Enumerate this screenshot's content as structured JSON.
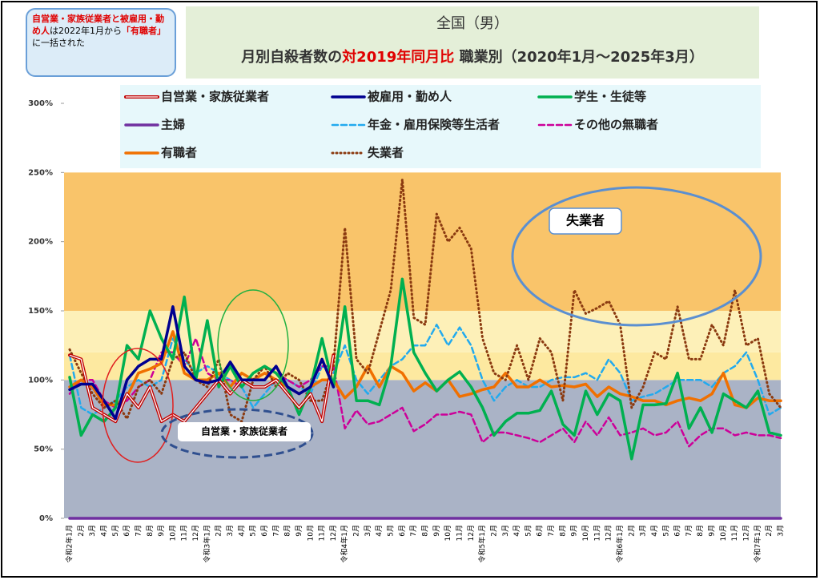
{
  "chart_data": {
    "type": "line",
    "title": "全国（男）",
    "subtitle": [
      {
        "text": "月別自殺者数の"
      },
      {
        "text": "対2019年同月比",
        "color": "#e00000"
      },
      {
        "text": " 職業別（2020年1月～2025年3月）"
      }
    ],
    "note": [
      {
        "text": "自営業・家族従業者と被雇用・勤め人",
        "color": "#e00000"
      },
      {
        "text": "は2022年1月から"
      },
      {
        "text": "「有職者」",
        "color": "#e00000"
      },
      {
        "text": "に一括された"
      }
    ],
    "annotations": [
      "失業者",
      "自営業・家族従業者"
    ],
    "categories": [
      "令和2年1月",
      "2月",
      "3月",
      "4月",
      "5月",
      "6月",
      "7月",
      "8月",
      "9月",
      "10月",
      "11月",
      "12月",
      "令和3年1月",
      "2月",
      "3月",
      "4月",
      "5月",
      "6月",
      "7月",
      "8月",
      "9月",
      "10月",
      "11月",
      "12月",
      "令和4年1月",
      "2月",
      "3月",
      "4月",
      "5月",
      "6月",
      "7月",
      "8月",
      "9月",
      "10月",
      "11月",
      "12月",
      "令和5年1月",
      "2月",
      "3月",
      "4月",
      "5月",
      "6月",
      "7月",
      "8月",
      "9月",
      "10月",
      "11月",
      "12月",
      "令和6年1月",
      "2月",
      "3月",
      "4月",
      "5月",
      "6月",
      "7月",
      "8月",
      "9月",
      "10月",
      "11月",
      "12月",
      "令和7年1月",
      "2月",
      "3月"
    ],
    "ylim": [
      0,
      300
    ],
    "yticks": [
      {
        "value": 0,
        "label": "0%"
      },
      {
        "value": 50,
        "label": "50%"
      },
      {
        "value": 100,
        "label": "100%"
      },
      {
        "value": 150,
        "label": "150%"
      },
      {
        "value": 200,
        "label": "200%"
      },
      {
        "value": 250,
        "label": "250%"
      },
      {
        "value": 300,
        "label": "300%"
      }
    ],
    "bands": [
      {
        "from": 0,
        "to": 100,
        "color": "#aab3c6"
      },
      {
        "from": 100,
        "to": 120,
        "color": "#fde9a0"
      },
      {
        "from": 120,
        "to": 150,
        "color": "#fdf0b8"
      },
      {
        "from": 150,
        "to": 250,
        "color": "#f9c46a"
      }
    ],
    "series": [
      {
        "name": "自営業・家族従業者",
        "color": "#c00000",
        "style": "double",
        "values": [
          118,
          115,
          80,
          75,
          70,
          90,
          80,
          95,
          70,
          75,
          70,
          80,
          90,
          100,
          90,
          100,
          95,
          95,
          100,
          90,
          80,
          90,
          70,
          118,
          null,
          null,
          null,
          null,
          null,
          null,
          null,
          null,
          null,
          null,
          null,
          null,
          null,
          null,
          null,
          null,
          null,
          null,
          null,
          null,
          null,
          null,
          null,
          null,
          null,
          null,
          null,
          null,
          null,
          null,
          null,
          null,
          null,
          null,
          null,
          null,
          null,
          null,
          null
        ]
      },
      {
        "name": "被雇用・勤め人",
        "color": "#000090",
        "style": "solid",
        "values": [
          93,
          97,
          97,
          85,
          72,
          100,
          110,
          115,
          115,
          153,
          110,
          100,
          98,
          100,
          113,
          100,
          100,
          100,
          110,
          95,
          90,
          95,
          115,
          95,
          null,
          null,
          null,
          null,
          null,
          null,
          null,
          null,
          null,
          null,
          null,
          null,
          null,
          null,
          null,
          null,
          null,
          null,
          null,
          null,
          null,
          null,
          null,
          null,
          null,
          null,
          null,
          null,
          null,
          null,
          null,
          null,
          null,
          null,
          null,
          null,
          null,
          null,
          null
        ]
      },
      {
        "name": "学生・生徒等",
        "color": "#00b050",
        "style": "solid",
        "values": [
          102,
          60,
          75,
          70,
          80,
          125,
          115,
          150,
          130,
          115,
          160,
          100,
          143,
          95,
          110,
          95,
          105,
          110,
          105,
          95,
          75,
          95,
          130,
          95,
          153,
          85,
          85,
          82,
          110,
          173,
          120,
          105,
          92,
          100,
          106,
          95,
          80,
          60,
          70,
          76,
          76,
          78,
          92,
          68,
          60,
          92,
          75,
          90,
          85,
          43,
          82,
          82,
          83,
          105,
          65,
          80,
          62,
          90,
          85,
          80,
          92,
          62,
          60
        ]
      },
      {
        "name": "主婦",
        "color": "#7030a0",
        "style": "solid",
        "values": [
          0,
          0,
          0,
          0,
          0,
          0,
          0,
          0,
          0,
          0,
          0,
          0,
          0,
          0,
          0,
          0,
          0,
          0,
          0,
          0,
          0,
          0,
          0,
          0,
          0,
          0,
          0,
          0,
          0,
          0,
          0,
          0,
          0,
          0,
          0,
          0,
          0,
          0,
          0,
          0,
          0,
          0,
          0,
          0,
          0,
          0,
          0,
          0,
          0,
          0,
          0,
          0,
          0,
          0,
          0,
          0,
          0,
          0,
          0,
          0,
          0,
          0,
          0
        ]
      },
      {
        "name": "年金・雇用保険等生活者",
        "color": "#22aaee",
        "style": "dashed",
        "values": [
          118,
          80,
          75,
          80,
          85,
          95,
          100,
          95,
          100,
          130,
          115,
          105,
          110,
          105,
          100,
          95,
          80,
          90,
          100,
          100,
          95,
          90,
          110,
          105,
          125,
          100,
          90,
          100,
          110,
          115,
          125,
          125,
          140,
          125,
          138,
          125,
          100,
          85,
          95,
          100,
          95,
          95,
          100,
          102,
          102,
          105,
          100,
          115,
          105,
          85,
          88,
          90,
          95,
          100,
          100,
          100,
          95,
          105,
          110,
          120,
          100,
          75,
          80
        ]
      },
      {
        "name": "その他の無職者",
        "color": "#cc0099",
        "style": "dashed",
        "values": [
          90,
          100,
          100,
          85,
          80,
          85,
          95,
          100,
          120,
          120,
          110,
          130,
          105,
          100,
          100,
          95,
          105,
          110,
          105,
          100,
          95,
          100,
          110,
          110,
          65,
          78,
          68,
          70,
          75,
          80,
          63,
          68,
          75,
          75,
          77,
          75,
          55,
          62,
          62,
          60,
          58,
          55,
          60,
          65,
          55,
          70,
          60,
          73,
          60,
          62,
          65,
          60,
          62,
          70,
          52,
          60,
          65,
          65,
          60,
          62,
          60,
          60,
          58
        ]
      },
      {
        "name": "有職者",
        "color": "#f07000",
        "style": "solid",
        "values": [
          95,
          100,
          95,
          82,
          82,
          88,
          105,
          108,
          112,
          135,
          105,
          100,
          100,
          105,
          95,
          105,
          100,
          105,
          100,
          95,
          90,
          95,
          100,
          100,
          87,
          95,
          110,
          95,
          110,
          105,
          92,
          98,
          92,
          100,
          88,
          90,
          93,
          95,
          105,
          95,
          95,
          100,
          95,
          96,
          95,
          97,
          88,
          95,
          90,
          88,
          85,
          85,
          82,
          85,
          87,
          85,
          90,
          105,
          82,
          80,
          87,
          85,
          85
        ]
      },
      {
        "name": "失業者",
        "color": "#8b3a10",
        "style": "dotted",
        "values": [
          122,
          105,
          90,
          80,
          85,
          72,
          95,
          100,
          90,
          115,
          120,
          100,
          95,
          115,
          75,
          70,
          100,
          110,
          95,
          105,
          100,
          85,
          85,
          110,
          210,
          115,
          105,
          135,
          165,
          245,
          145,
          140,
          220,
          200,
          210,
          195,
          130,
          105,
          100,
          125,
          100,
          130,
          120,
          85,
          165,
          148,
          152,
          157,
          140,
          80,
          95,
          120,
          115,
          153,
          115,
          115,
          140,
          125,
          165,
          125,
          130,
          90,
          80
        ]
      }
    ]
  }
}
